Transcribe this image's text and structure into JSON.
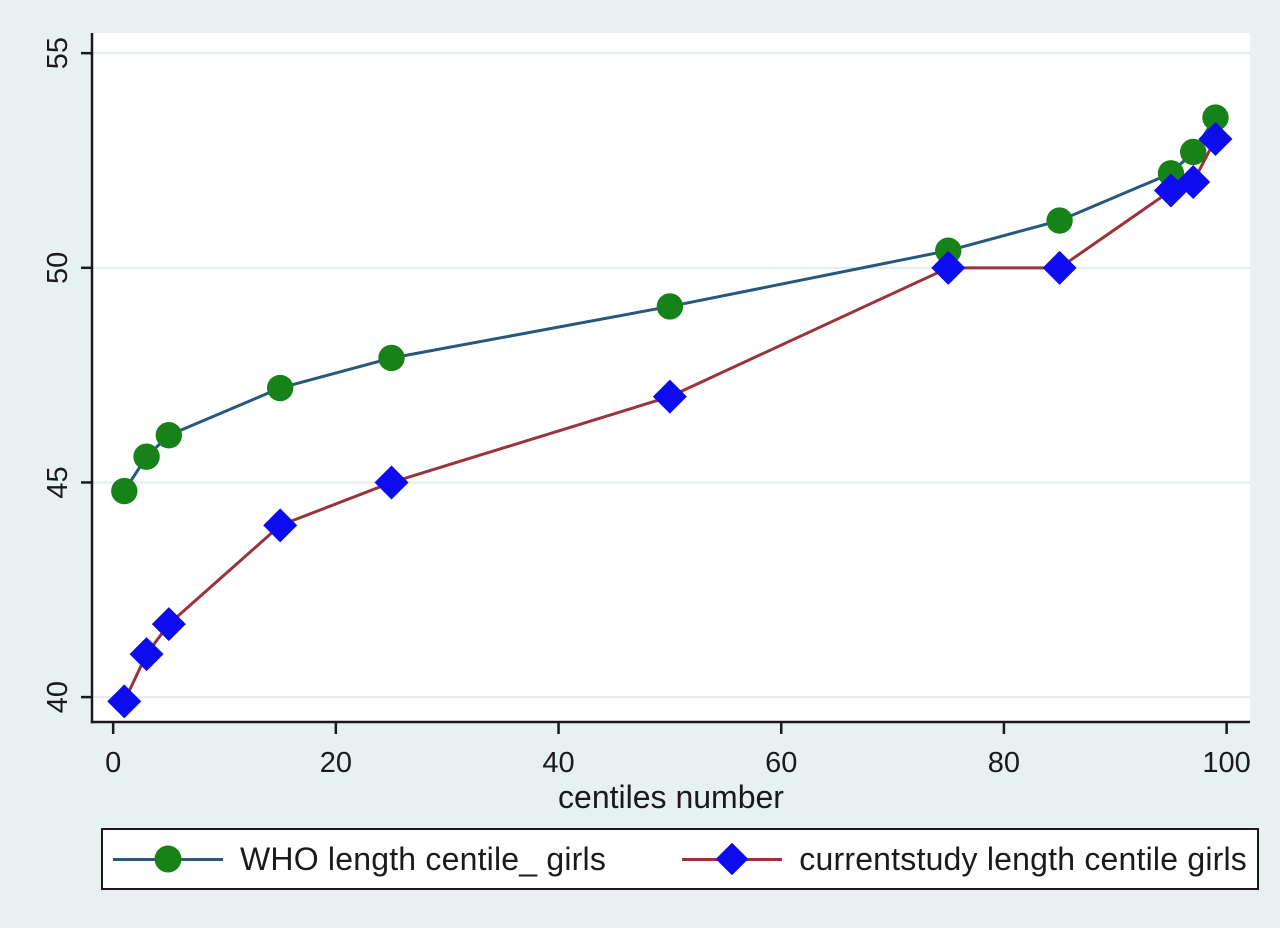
{
  "chart_data": {
    "type": "line",
    "title": "",
    "xlabel": "centiles number",
    "ylabel": "",
    "x": [
      1,
      3,
      5,
      15,
      25,
      50,
      75,
      85,
      95,
      97,
      99
    ],
    "series": [
      {
        "name": "WHO length centile_ girls",
        "marker": "circle",
        "marker_color": "#178217",
        "line_color": "#26597d",
        "values": [
          44.8,
          45.6,
          46.1,
          47.2,
          47.9,
          49.1,
          50.4,
          51.1,
          52.2,
          52.7,
          53.5
        ]
      },
      {
        "name": "currentstudy length centile girls",
        "marker": "diamond",
        "marker_color": "#0c0cee",
        "line_color": "#9b3339",
        "values": [
          39.9,
          41.0,
          41.7,
          44.0,
          45.0,
          47.0,
          50.0,
          50.0,
          51.8,
          52.0,
          53.0
        ]
      }
    ],
    "x_ticks": [
      0,
      20,
      40,
      60,
      80,
      100
    ],
    "y_ticks": [
      40,
      45,
      50,
      55
    ],
    "xlim": [
      -1.9,
      102.1
    ],
    "ylim": [
      39.42,
      55.47
    ],
    "grid": "horizontal",
    "legend_position": "bottom"
  },
  "colors": {
    "page_background": "#e8f1f2",
    "plot_background": "#ffffff",
    "gridline": "#e3edef",
    "axis": "#1a1a1a",
    "tick_label": "#1a1a1a",
    "legend_border": "#1a1a1a",
    "legend_background": "#ffffff"
  }
}
